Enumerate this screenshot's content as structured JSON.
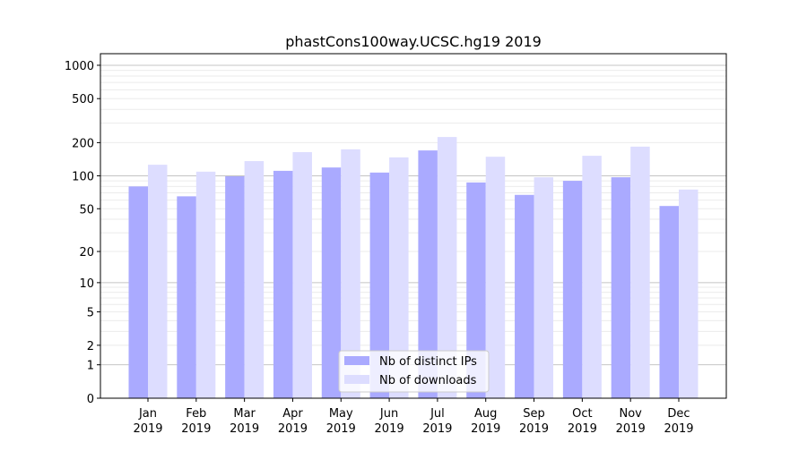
{
  "chart_data": {
    "type": "bar",
    "title": "phastCons100way.UCSC.hg19 2019",
    "xlabel": "",
    "ylabel": "",
    "yscale": "log(x+1)",
    "ylim": [
      0,
      1270
    ],
    "grid": true,
    "legend_placement": "bottom-center",
    "categories": [
      "Jan\n2019",
      "Feb\n2019",
      "Mar\n2019",
      "Apr\n2019",
      "May\n2019",
      "Jun\n2019",
      "Jul\n2019",
      "Aug\n2019",
      "Sep\n2019",
      "Oct\n2019",
      "Nov\n2019",
      "Dec\n2019"
    ],
    "yticks": [
      0,
      1,
      2,
      5,
      10,
      20,
      50,
      100,
      200,
      500,
      1000
    ],
    "series": [
      {
        "name": "Nb of distinct IPs",
        "color": "#aaaaff",
        "values": [
          80,
          65,
          99,
          111,
          119,
          107,
          170,
          87,
          67,
          90,
          97,
          53
        ]
      },
      {
        "name": "Nb of downloads",
        "color": "#ddddff",
        "values": [
          126,
          109,
          136,
          164,
          174,
          147,
          225,
          149,
          97,
          152,
          184,
          75
        ]
      }
    ]
  }
}
